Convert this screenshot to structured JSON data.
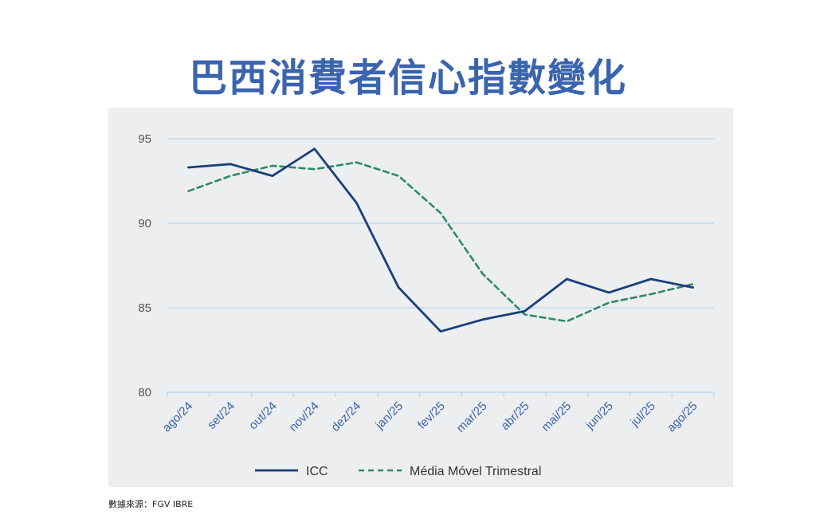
{
  "title": "巴西消費者信心指數變化",
  "source": "數據來源：FGV IBRE",
  "colors": {
    "icc": "#1a3e7c",
    "mm": "#2e8a6a",
    "grid": "#bcd6ee",
    "title": "#3a64ae",
    "plot_bg": "#eceeef"
  },
  "chart_data": {
    "type": "line",
    "categories": [
      "ago/24",
      "set/24",
      "out/24",
      "nov/24",
      "dez/24",
      "jan/25",
      "fev/25",
      "mar/25",
      "abr/25",
      "mai/25",
      "jun/25",
      "jul/25",
      "ago/25"
    ],
    "ylim": [
      80,
      95
    ],
    "yticks": [
      80,
      85,
      90,
      95
    ],
    "grid": true,
    "legend_position": "bottom",
    "series": [
      {
        "name": "ICC",
        "style": "solid",
        "values": [
          93.3,
          93.5,
          92.8,
          94.4,
          91.2,
          86.2,
          83.6,
          84.3,
          84.8,
          86.7,
          85.9,
          86.7,
          86.2
        ]
      },
      {
        "name": "Média Móvel Trimestral",
        "style": "dashed",
        "values": [
          91.9,
          92.8,
          93.4,
          93.2,
          93.6,
          92.8,
          90.6,
          87.0,
          84.6,
          84.2,
          85.3,
          85.8,
          86.4
        ]
      }
    ]
  }
}
